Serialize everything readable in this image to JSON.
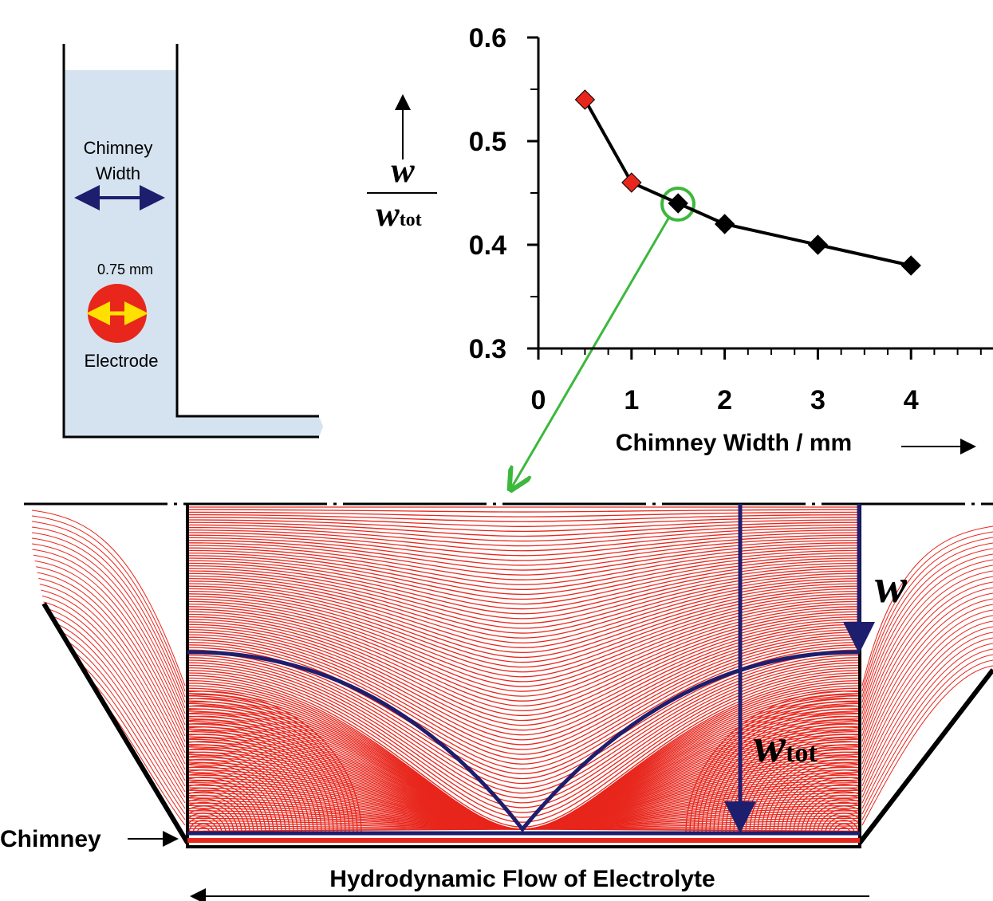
{
  "schematic": {
    "label_lines": [
      "Chimney",
      "Width"
    ],
    "electrode_size": "0.75 mm",
    "electrode_label": "Electrode"
  },
  "chart_data": {
    "type": "line",
    "x": [
      0.5,
      1,
      1.5,
      2,
      3,
      4
    ],
    "series": [
      {
        "color": "#000000",
        "marker_colors": [
          "#e8261c",
          "#e8261c",
          "#000000",
          "#000000",
          "#000000",
          "#000000"
        ],
        "values": [
          0.54,
          0.46,
          0.44,
          0.42,
          0.4,
          0.38
        ]
      }
    ],
    "xlim": [
      0,
      4.88
    ],
    "ylim": [
      0.3,
      0.6
    ],
    "xticks": [
      0,
      1,
      2,
      3,
      4
    ],
    "yticks": [
      {
        "value": 0.3,
        "label": "0.3"
      },
      {
        "value": 0.4,
        "label": "0.4"
      },
      {
        "value": 0.5,
        "label": "0.5"
      },
      {
        "value": 0.6,
        "label": "0.6"
      }
    ],
    "x_label": "Chimney Width  / mm",
    "y_label": {
      "numerator": "w",
      "denominator": "w",
      "denominator_subscript": "tot"
    }
  },
  "flow": {
    "w_label": "w",
    "wtot_label": "w",
    "wtot_subscript": "tot",
    "chimney_label": "Chimney",
    "caption": "Hydrodynamic Flow of Electrolyte"
  }
}
